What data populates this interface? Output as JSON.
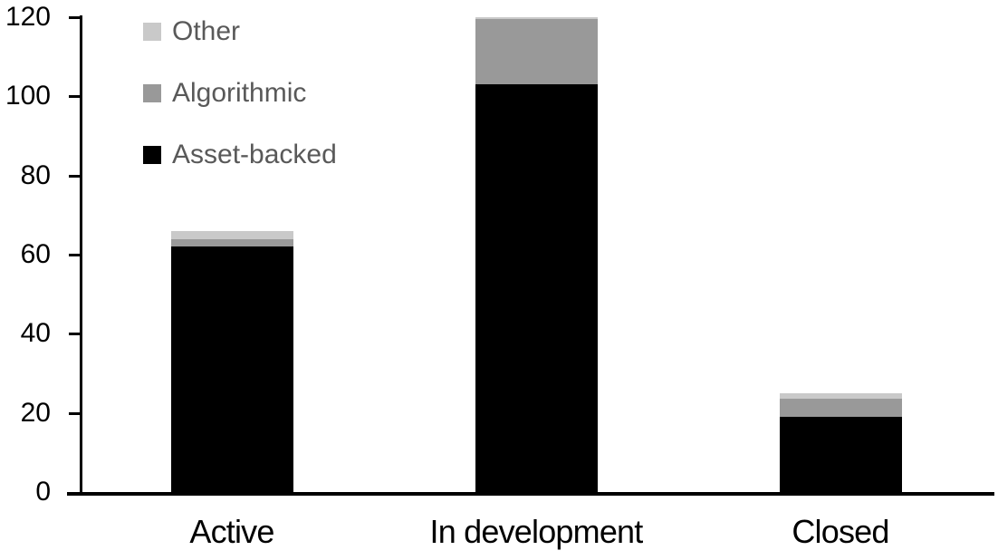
{
  "chart_data": {
    "type": "bar",
    "stacked": true,
    "title": "",
    "xlabel": "",
    "ylabel": "",
    "categories": [
      "Active",
      "In development",
      "Closed"
    ],
    "series": [
      {
        "name": "Asset-backed",
        "color": "#000000",
        "values": [
          62,
          103,
          19
        ]
      },
      {
        "name": "Algorithmic",
        "color": "#999999",
        "values": [
          2,
          16.5,
          4.5
        ]
      },
      {
        "name": "Other",
        "color": "#c9c9c9",
        "values": [
          2,
          0.5,
          1.5
        ]
      }
    ],
    "totals": [
      66,
      120,
      25
    ],
    "ylim": [
      0,
      120
    ],
    "yticks": [
      0,
      20,
      40,
      60,
      80,
      100,
      120
    ],
    "grid": false,
    "legend_position": "top-left",
    "legend_order_top_to_bottom": [
      "Other",
      "Algorithmic",
      "Asset-backed"
    ]
  },
  "colors": {
    "axis": "#000000",
    "tick_label_text": "#000000",
    "category_label_text": "#000000",
    "legend_text": "#595959",
    "background": "#ffffff"
  }
}
